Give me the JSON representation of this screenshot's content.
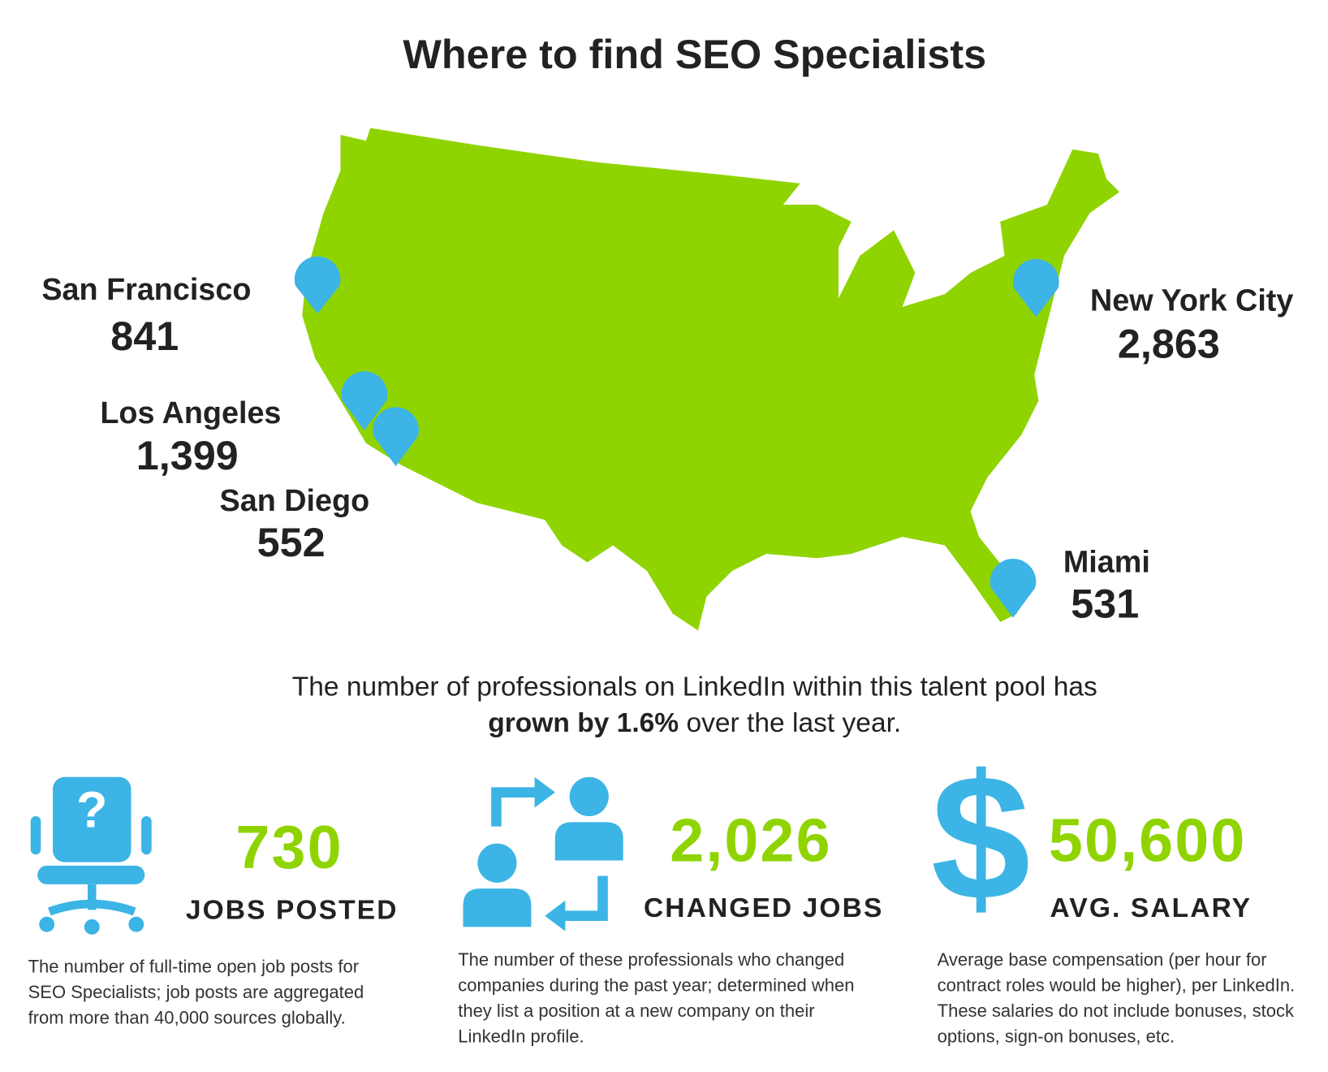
{
  "title": "Where to find SEO Specialists",
  "cities": [
    {
      "name": "San Francisco",
      "count": "841"
    },
    {
      "name": "Los Angeles",
      "count": "1,399"
    },
    {
      "name": "San Diego",
      "count": "552"
    },
    {
      "name": "New York City",
      "count": "2,863"
    },
    {
      "name": "Miami",
      "count": "531"
    }
  ],
  "summary": {
    "line1": "The number of professionals on LinkedIn within this talent pool has",
    "bold": "grown by 1.6%",
    "rest": " over the last year."
  },
  "stats": [
    {
      "value": "730",
      "label": "JOBS POSTED",
      "description": [
        "The number of full-time open job posts for",
        "SEO Specialists; job posts are aggregated",
        "from more than 40,000 sources globally."
      ]
    },
    {
      "value": "2,026",
      "label": "CHANGED JOBS",
      "description": [
        "The number of these professionals who changed",
        "companies during the past year; determined when",
        "they list a position at a new company on their",
        "LinkedIn profile."
      ]
    },
    {
      "value": "50,600",
      "label": "AVG. SALARY",
      "description": [
        "Average base compensation (per hour for",
        "contract roles would be higher), per LinkedIn.",
        "These salaries do not include bonuses, stock",
        "options, sign-on bonuses, etc."
      ]
    }
  ]
}
